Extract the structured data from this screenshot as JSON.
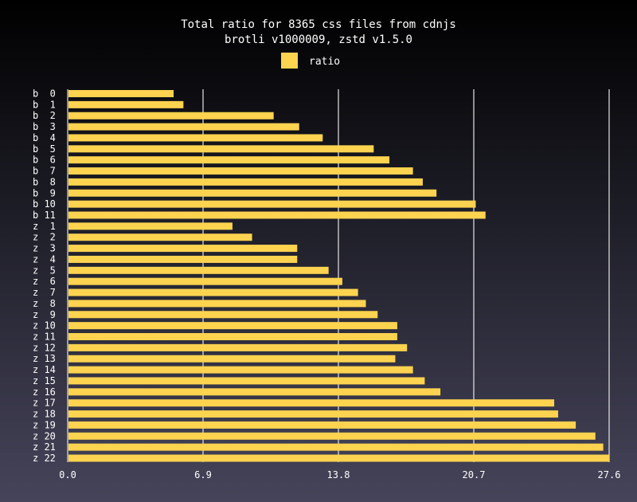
{
  "chart_data": {
    "type": "bar",
    "orientation": "horizontal",
    "title": "Total ratio for 8365 css files from cdnjs",
    "subtitle": "brotli v1000009, zstd v1.5.0",
    "legend": {
      "position": "top-center",
      "entries": [
        "ratio"
      ]
    },
    "series": [
      {
        "name": "ratio",
        "color": "#fdd34f",
        "values": [
          5.4,
          5.9,
          10.5,
          11.8,
          13.0,
          15.6,
          16.4,
          17.6,
          18.1,
          18.8,
          20.8,
          21.3,
          8.4,
          9.4,
          11.7,
          11.7,
          13.3,
          14.0,
          14.8,
          15.2,
          15.8,
          16.8,
          16.8,
          17.3,
          16.7,
          17.6,
          18.2,
          19.0,
          24.8,
          25.0,
          25.9,
          26.9,
          27.3,
          27.6
        ]
      }
    ],
    "categories": [
      "b  0",
      "b  1",
      "b  2",
      "b  3",
      "b  4",
      "b  5",
      "b  6",
      "b  7",
      "b  8",
      "b  9",
      "b 10",
      "b 11",
      "z  1",
      "z  2",
      "z  3",
      "z  4",
      "z  5",
      "z  6",
      "z  7",
      "z  8",
      "z  9",
      "z 10",
      "z 11",
      "z 12",
      "z 13",
      "z 14",
      "z 15",
      "z 16",
      "z 17",
      "z 18",
      "z 19",
      "z 20",
      "z 21",
      "z 22"
    ],
    "xlim": [
      0,
      27.6
    ],
    "xticks": [
      "0.0",
      "6.9",
      "13.8",
      "20.7",
      "27.6"
    ],
    "grid": true,
    "xlabel": "",
    "ylabel": ""
  }
}
